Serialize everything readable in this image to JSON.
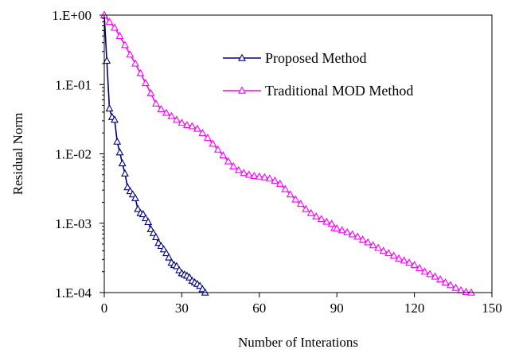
{
  "chart_data": {
    "type": "line",
    "title": "",
    "xlabel": "Number of Interations",
    "ylabel": "Residual Norm",
    "xlim": [
      0,
      150
    ],
    "ylim": [
      0.0001,
      1
    ],
    "y_scale": "log",
    "x_ticks": [
      0,
      30,
      60,
      90,
      120,
      150
    ],
    "x_tick_labels": [
      "0",
      "30",
      "60",
      "90",
      "120",
      "150"
    ],
    "y_ticks": [
      1,
      0.1,
      0.01,
      0.001,
      0.0001
    ],
    "y_tick_labels": [
      "1.E+00",
      "1.E-01",
      "1.E-02",
      "1.E-03",
      "1.E-04"
    ],
    "grid": false,
    "legend_position": "top-right",
    "series": [
      {
        "name": "Proposed Method",
        "color": "#000080",
        "marker": "open-triangle",
        "x": [
          0,
          1,
          2,
          3,
          4,
          5,
          6,
          7,
          8,
          9,
          10,
          11,
          12,
          13,
          14,
          15,
          16,
          17,
          18,
          19,
          20,
          21,
          22,
          23,
          24,
          25,
          26,
          27,
          28,
          29,
          30,
          31,
          32,
          33,
          34,
          35,
          36,
          37,
          38,
          39
        ],
        "y": [
          1.0,
          0.22,
          0.045,
          0.034,
          0.031,
          0.015,
          0.0105,
          0.0073,
          0.0052,
          0.0033,
          0.0029,
          0.0026,
          0.0023,
          0.0016,
          0.0014,
          0.00135,
          0.00118,
          0.00104,
          0.00082,
          0.00072,
          0.00063,
          0.00052,
          0.00047,
          0.00042,
          0.00037,
          0.00032,
          0.00027,
          0.00025,
          0.00024,
          0.00021,
          0.00019,
          0.000182,
          0.000175,
          0.000165,
          0.000148,
          0.00014,
          0.000133,
          0.000125,
          0.000112,
          0.0001
        ]
      },
      {
        "name": "Traditional MOD Method",
        "color": "#ff00ff",
        "marker": "open-triangle",
        "x": [
          0,
          2,
          4,
          6,
          8,
          10,
          12,
          14,
          16,
          18,
          20,
          22,
          24,
          26,
          28,
          30,
          32,
          34,
          36,
          38,
          40,
          42,
          44,
          46,
          48,
          50,
          52,
          54,
          56,
          58,
          60,
          62,
          64,
          66,
          68,
          70,
          72,
          74,
          76,
          78,
          80,
          82,
          84,
          86,
          88,
          89,
          90,
          92,
          94,
          96,
          98,
          100,
          102,
          104,
          106,
          108,
          110,
          112,
          114,
          116,
          118,
          120,
          122,
          124,
          126,
          128,
          130,
          132,
          134,
          136,
          138,
          140,
          142
        ],
        "y": [
          1.0,
          0.8,
          0.66,
          0.5,
          0.37,
          0.27,
          0.2,
          0.145,
          0.105,
          0.075,
          0.053,
          0.044,
          0.039,
          0.035,
          0.031,
          0.028,
          0.026,
          0.025,
          0.023,
          0.02,
          0.017,
          0.014,
          0.0115,
          0.0095,
          0.0078,
          0.0066,
          0.0058,
          0.0053,
          0.005,
          0.0048,
          0.0047,
          0.0046,
          0.0044,
          0.0041,
          0.0037,
          0.0031,
          0.0026,
          0.0022,
          0.0019,
          0.0016,
          0.0014,
          0.00125,
          0.00115,
          0.00105,
          0.00098,
          0.00085,
          0.00084,
          0.00079,
          0.00074,
          0.00069,
          0.00064,
          0.00058,
          0.00053,
          0.00048,
          0.00044,
          0.0004,
          0.00037,
          0.00034,
          0.00031,
          0.00029,
          0.00027,
          0.00025,
          0.000225,
          0.0002,
          0.000185,
          0.00017,
          0.000155,
          0.00014,
          0.000128,
          0.000117,
          0.000108,
          0.000102,
          0.0001
        ]
      }
    ]
  }
}
